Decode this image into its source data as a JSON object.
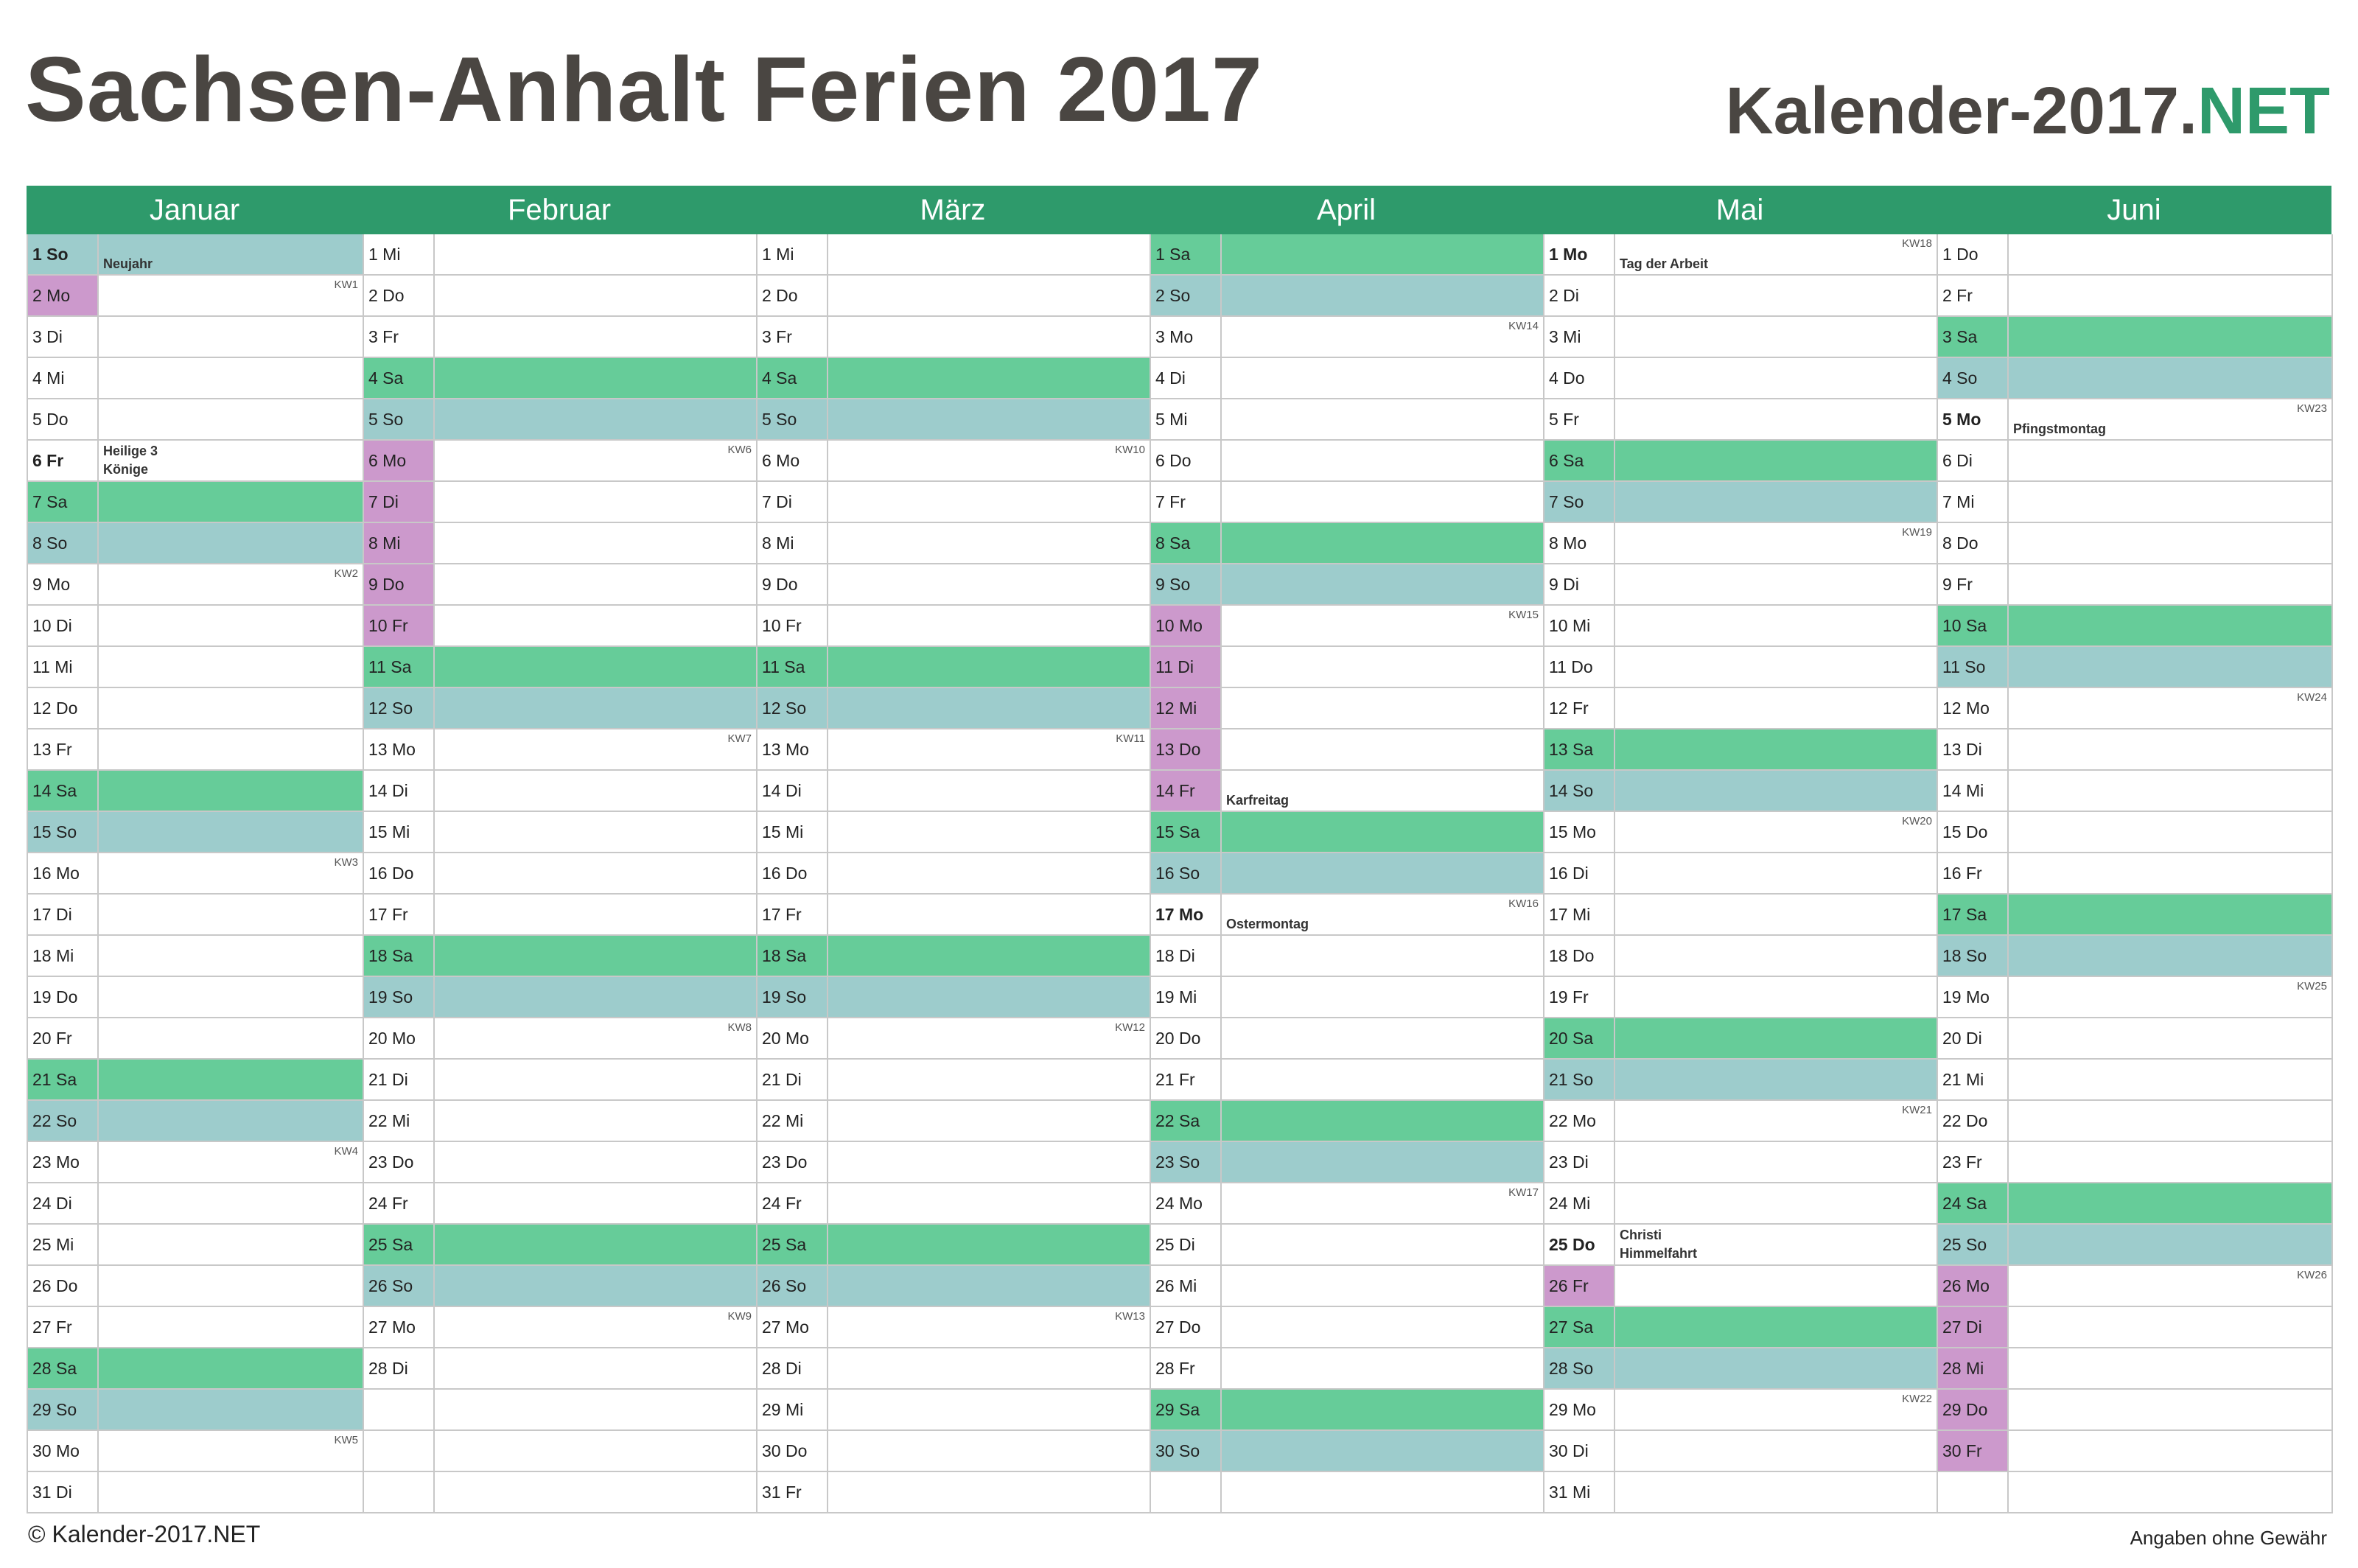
{
  "header": {
    "title": "Sachsen-Anhalt Ferien 2017",
    "brand_main": "Kalender-2017.",
    "brand_accent": "NET"
  },
  "footer": {
    "copyright": "© Kalender-2017.NET",
    "disclaimer": "Angaben ohne Gewähr"
  },
  "colors": {
    "header_green": "#2e9a6b",
    "saturday": "#66cc99",
    "sunday": "#9dcccc",
    "ferien": "#cc99cc",
    "title_text": "#4a4642"
  },
  "months": [
    {
      "name": "Januar",
      "days": [
        {
          "label": "1 So",
          "type": "sun",
          "hol": true,
          "holiday": "Neujahr"
        },
        {
          "label": "2 Mo",
          "fer": true,
          "kw": "KW1"
        },
        {
          "label": "3 Di"
        },
        {
          "label": "4 Mi"
        },
        {
          "label": "5 Do"
        },
        {
          "label": "6 Fr",
          "hol": true,
          "holiday": "Heilige 3\nKönige"
        },
        {
          "label": "7 Sa",
          "type": "sat"
        },
        {
          "label": "8 So",
          "type": "sun"
        },
        {
          "label": "9 Mo",
          "kw": "KW2"
        },
        {
          "label": "10 Di"
        },
        {
          "label": "11 Mi"
        },
        {
          "label": "12 Do"
        },
        {
          "label": "13 Fr"
        },
        {
          "label": "14 Sa",
          "type": "sat"
        },
        {
          "label": "15 So",
          "type": "sun"
        },
        {
          "label": "16 Mo",
          "kw": "KW3"
        },
        {
          "label": "17 Di"
        },
        {
          "label": "18 Mi"
        },
        {
          "label": "19 Do"
        },
        {
          "label": "20 Fr"
        },
        {
          "label": "21 Sa",
          "type": "sat"
        },
        {
          "label": "22 So",
          "type": "sun"
        },
        {
          "label": "23 Mo",
          "kw": "KW4"
        },
        {
          "label": "24 Di"
        },
        {
          "label": "25 Mi"
        },
        {
          "label": "26 Do"
        },
        {
          "label": "27 Fr"
        },
        {
          "label": "28 Sa",
          "type": "sat"
        },
        {
          "label": "29 So",
          "type": "sun"
        },
        {
          "label": "30 Mo",
          "kw": "KW5"
        },
        {
          "label": "31 Di"
        }
      ]
    },
    {
      "name": "Februar",
      "days": [
        {
          "label": "1 Mi"
        },
        {
          "label": "2 Do"
        },
        {
          "label": "3 Fr"
        },
        {
          "label": "4 Sa",
          "type": "sat"
        },
        {
          "label": "5 So",
          "type": "sun"
        },
        {
          "label": "6 Mo",
          "fer": true,
          "kw": "KW6"
        },
        {
          "label": "7 Di",
          "fer": true
        },
        {
          "label": "8 Mi",
          "fer": true
        },
        {
          "label": "9 Do",
          "fer": true
        },
        {
          "label": "10 Fr",
          "fer": true
        },
        {
          "label": "11 Sa",
          "type": "sat"
        },
        {
          "label": "12 So",
          "type": "sun"
        },
        {
          "label": "13 Mo",
          "kw": "KW7"
        },
        {
          "label": "14 Di"
        },
        {
          "label": "15 Mi"
        },
        {
          "label": "16 Do"
        },
        {
          "label": "17 Fr"
        },
        {
          "label": "18 Sa",
          "type": "sat"
        },
        {
          "label": "19 So",
          "type": "sun"
        },
        {
          "label": "20 Mo",
          "kw": "KW8"
        },
        {
          "label": "21 Di"
        },
        {
          "label": "22 Mi"
        },
        {
          "label": "23 Do"
        },
        {
          "label": "24 Fr"
        },
        {
          "label": "25 Sa",
          "type": "sat"
        },
        {
          "label": "26 So",
          "type": "sun"
        },
        {
          "label": "27 Mo",
          "kw": "KW9"
        },
        {
          "label": "28 Di"
        }
      ]
    },
    {
      "name": "März",
      "days": [
        {
          "label": "1 Mi"
        },
        {
          "label": "2 Do"
        },
        {
          "label": "3 Fr"
        },
        {
          "label": "4 Sa",
          "type": "sat"
        },
        {
          "label": "5 So",
          "type": "sun"
        },
        {
          "label": "6 Mo",
          "kw": "KW10"
        },
        {
          "label": "7 Di"
        },
        {
          "label": "8 Mi"
        },
        {
          "label": "9 Do"
        },
        {
          "label": "10 Fr"
        },
        {
          "label": "11 Sa",
          "type": "sat"
        },
        {
          "label": "12 So",
          "type": "sun"
        },
        {
          "label": "13 Mo",
          "kw": "KW11"
        },
        {
          "label": "14 Di"
        },
        {
          "label": "15 Mi"
        },
        {
          "label": "16 Do"
        },
        {
          "label": "17 Fr"
        },
        {
          "label": "18 Sa",
          "type": "sat"
        },
        {
          "label": "19 So",
          "type": "sun"
        },
        {
          "label": "20 Mo",
          "kw": "KW12"
        },
        {
          "label": "21 Di"
        },
        {
          "label": "22 Mi"
        },
        {
          "label": "23 Do"
        },
        {
          "label": "24 Fr"
        },
        {
          "label": "25 Sa",
          "type": "sat"
        },
        {
          "label": "26 So",
          "type": "sun"
        },
        {
          "label": "27 Mo",
          "kw": "KW13"
        },
        {
          "label": "28 Di"
        },
        {
          "label": "29 Mi"
        },
        {
          "label": "30 Do"
        },
        {
          "label": "31 Fr"
        }
      ]
    },
    {
      "name": "April",
      "days": [
        {
          "label": "1 Sa",
          "type": "sat"
        },
        {
          "label": "2 So",
          "type": "sun"
        },
        {
          "label": "3 Mo",
          "kw": "KW14"
        },
        {
          "label": "4 Di"
        },
        {
          "label": "5 Mi"
        },
        {
          "label": "6 Do"
        },
        {
          "label": "7 Fr"
        },
        {
          "label": "8 Sa",
          "type": "sat"
        },
        {
          "label": "9 So",
          "type": "sun"
        },
        {
          "label": "10 Mo",
          "fer": true,
          "kw": "KW15"
        },
        {
          "label": "11 Di",
          "fer": true
        },
        {
          "label": "12 Mi",
          "fer": true
        },
        {
          "label": "13 Do",
          "fer": true
        },
        {
          "label": "14 Fr",
          "fer": true,
          "holiday": "Karfreitag"
        },
        {
          "label": "15 Sa",
          "type": "sat"
        },
        {
          "label": "16 So",
          "type": "sun"
        },
        {
          "label": "17 Mo",
          "hol": true,
          "holiday": "Ostermontag",
          "kw": "KW16"
        },
        {
          "label": "18 Di"
        },
        {
          "label": "19 Mi"
        },
        {
          "label": "20 Do"
        },
        {
          "label": "21 Fr"
        },
        {
          "label": "22 Sa",
          "type": "sat"
        },
        {
          "label": "23 So",
          "type": "sun"
        },
        {
          "label": "24 Mo",
          "kw": "KW17"
        },
        {
          "label": "25 Di"
        },
        {
          "label": "26 Mi"
        },
        {
          "label": "27 Do"
        },
        {
          "label": "28 Fr"
        },
        {
          "label": "29 Sa",
          "type": "sat"
        },
        {
          "label": "30 So",
          "type": "sun"
        }
      ]
    },
    {
      "name": "Mai",
      "days": [
        {
          "label": "1 Mo",
          "hol": true,
          "holiday": "Tag der Arbeit",
          "kw": "KW18"
        },
        {
          "label": "2 Di"
        },
        {
          "label": "3 Mi"
        },
        {
          "label": "4 Do"
        },
        {
          "label": "5 Fr"
        },
        {
          "label": "6 Sa",
          "type": "sat"
        },
        {
          "label": "7 So",
          "type": "sun"
        },
        {
          "label": "8 Mo",
          "kw": "KW19"
        },
        {
          "label": "9 Di"
        },
        {
          "label": "10 Mi"
        },
        {
          "label": "11 Do"
        },
        {
          "label": "12 Fr"
        },
        {
          "label": "13 Sa",
          "type": "sat"
        },
        {
          "label": "14 So",
          "type": "sun"
        },
        {
          "label": "15 Mo",
          "kw": "KW20"
        },
        {
          "label": "16 Di"
        },
        {
          "label": "17 Mi"
        },
        {
          "label": "18 Do"
        },
        {
          "label": "19 Fr"
        },
        {
          "label": "20 Sa",
          "type": "sat"
        },
        {
          "label": "21 So",
          "type": "sun"
        },
        {
          "label": "22 Mo",
          "kw": "KW21"
        },
        {
          "label": "23 Di"
        },
        {
          "label": "24 Mi"
        },
        {
          "label": "25 Do",
          "hol": true,
          "holiday": "Christi\nHimmelfahrt"
        },
        {
          "label": "26 Fr",
          "fer": true
        },
        {
          "label": "27 Sa",
          "type": "sat"
        },
        {
          "label": "28 So",
          "type": "sun"
        },
        {
          "label": "29 Mo",
          "kw": "KW22"
        },
        {
          "label": "30 Di"
        },
        {
          "label": "31 Mi"
        }
      ]
    },
    {
      "name": "Juni",
      "days": [
        {
          "label": "1 Do"
        },
        {
          "label": "2 Fr"
        },
        {
          "label": "3 Sa",
          "type": "sat"
        },
        {
          "label": "4 So",
          "type": "sun"
        },
        {
          "label": "5 Mo",
          "hol": true,
          "holiday": "Pfingstmontag",
          "kw": "KW23"
        },
        {
          "label": "6 Di"
        },
        {
          "label": "7 Mi"
        },
        {
          "label": "8 Do"
        },
        {
          "label": "9 Fr"
        },
        {
          "label": "10 Sa",
          "type": "sat"
        },
        {
          "label": "11 So",
          "type": "sun"
        },
        {
          "label": "12 Mo",
          "kw": "KW24"
        },
        {
          "label": "13 Di"
        },
        {
          "label": "14 Mi"
        },
        {
          "label": "15 Do"
        },
        {
          "label": "16 Fr"
        },
        {
          "label": "17 Sa",
          "type": "sat"
        },
        {
          "label": "18 So",
          "type": "sun"
        },
        {
          "label": "19 Mo",
          "kw": "KW25"
        },
        {
          "label": "20 Di"
        },
        {
          "label": "21 Mi"
        },
        {
          "label": "22 Do"
        },
        {
          "label": "23 Fr"
        },
        {
          "label": "24 Sa",
          "type": "sat"
        },
        {
          "label": "25 So",
          "type": "sun"
        },
        {
          "label": "26 Mo",
          "fer": true,
          "kw": "KW26"
        },
        {
          "label": "27 Di",
          "fer": true
        },
        {
          "label": "28 Mi",
          "fer": true
        },
        {
          "label": "29 Do",
          "fer": true
        },
        {
          "label": "30 Fr",
          "fer": true
        }
      ]
    }
  ]
}
